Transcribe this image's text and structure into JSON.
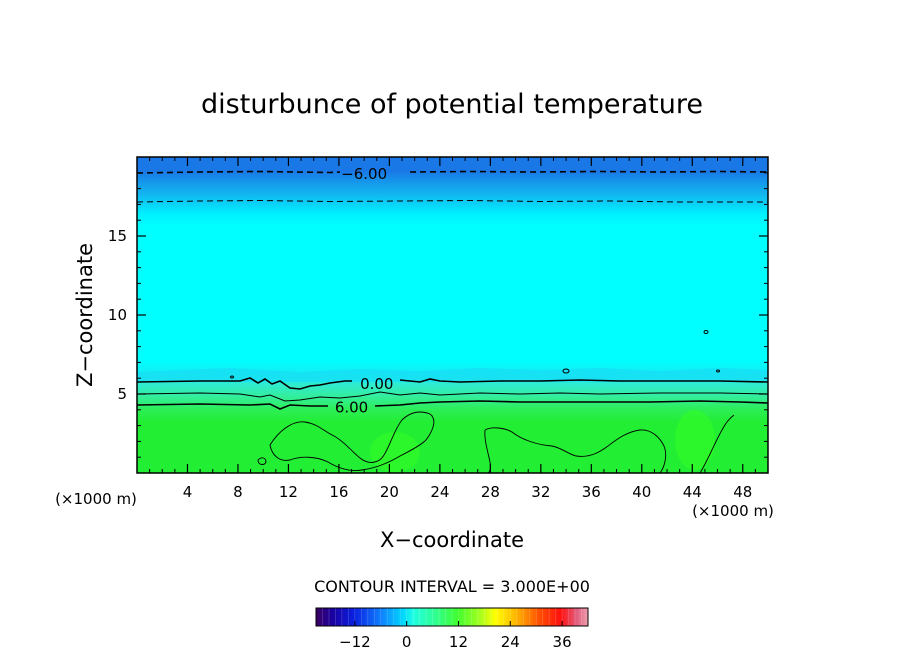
{
  "chart_data": {
    "type": "heatmap",
    "title": "disturbunce of potential temperature",
    "xlabel": "X−coordinate",
    "ylabel": "Z−coordinate",
    "x_unit": "(×1000 m)",
    "y_unit": "(×1000 m)",
    "xlim": [
      0,
      50
    ],
    "ylim": [
      0,
      20
    ],
    "x_ticks": [
      4,
      8,
      12,
      16,
      20,
      24,
      28,
      32,
      36,
      40,
      44,
      48
    ],
    "y_ticks": [
      5,
      10,
      15
    ],
    "contour_interval_text": "CONTOUR INTERVAL = 3.000E+00",
    "contour_labels": [
      {
        "text": "−6.00",
        "x": 18.0,
        "z": 19.0
      },
      {
        "text": "0.00",
        "x": 19.0,
        "z": 5.7
      },
      {
        "text": "6.00",
        "x": 17.0,
        "z": 4.2
      }
    ],
    "colorbar": {
      "range": [
        -21,
        42
      ],
      "ticks": [
        -12,
        0,
        12,
        24,
        36
      ],
      "tick_labels": [
        "−12",
        "0",
        "12",
        "24",
        "36"
      ]
    },
    "colors": {
      "top_band": "#1a78e6",
      "upper_gradient": "#18c8f0",
      "main_field": "#00ffff",
      "transition_band": "#33ee99",
      "lower_field": "#22ee33"
    }
  }
}
